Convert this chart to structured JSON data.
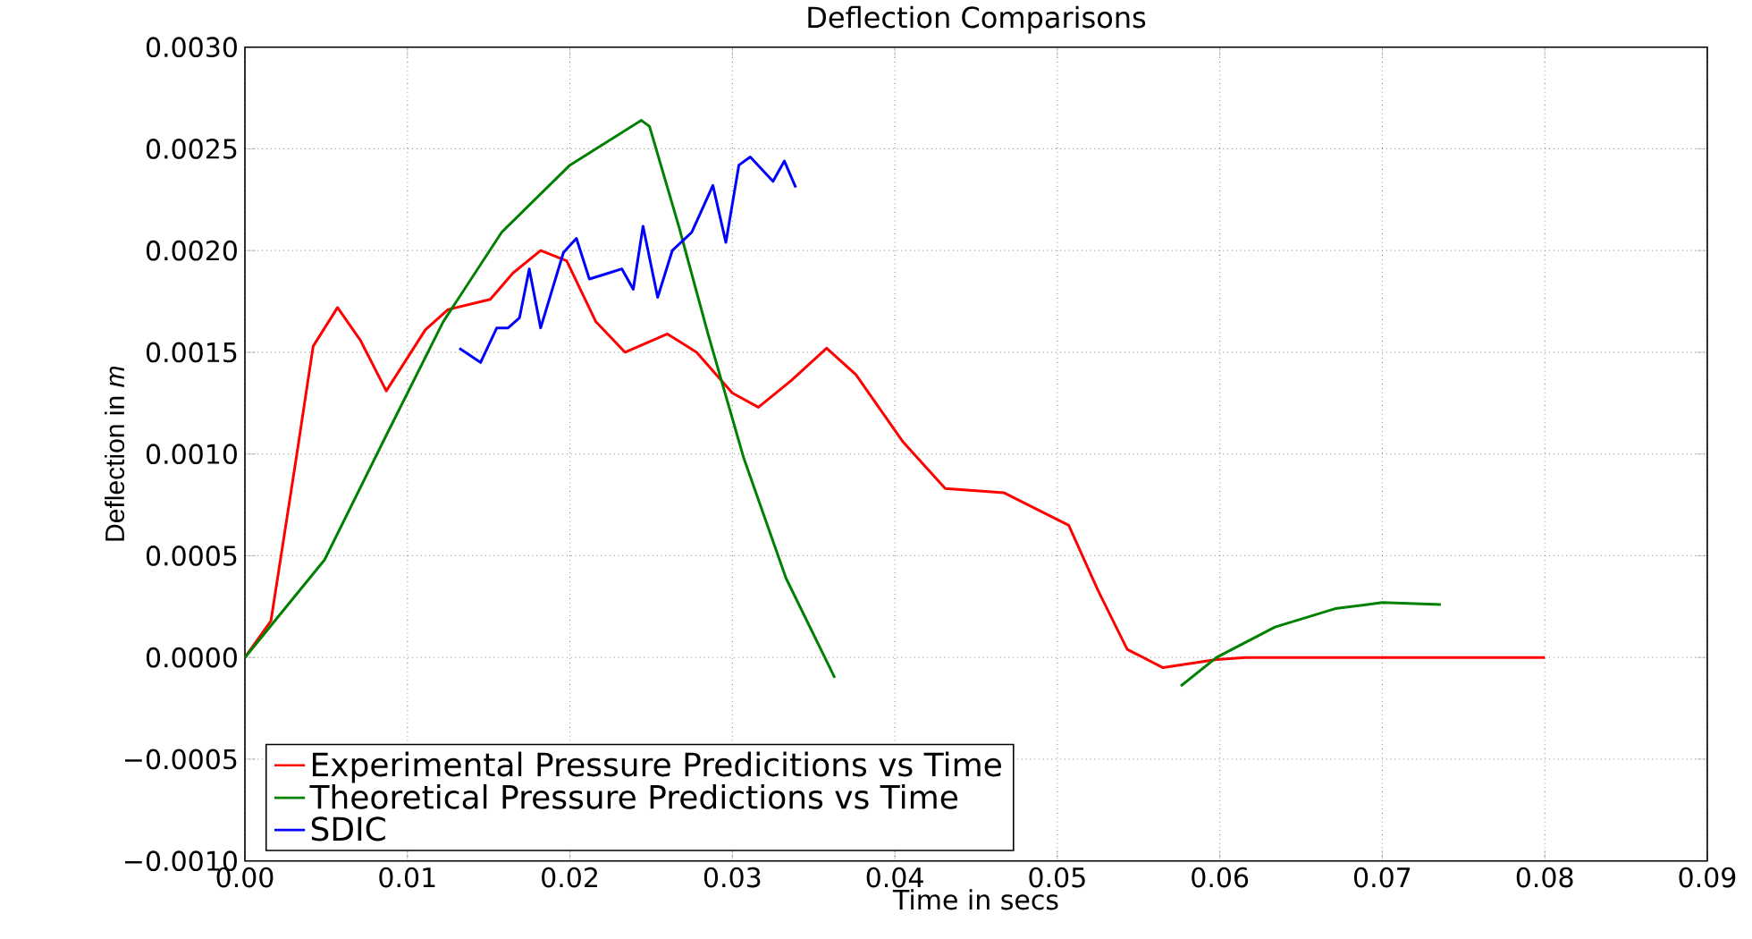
{
  "chart_data": {
    "type": "line",
    "title": "Deflection Comparisons",
    "xlabel": "Time in secs",
    "ylabel": "Deflection in *m*",
    "xlim": [
      0,
      0.09
    ],
    "ylim": [
      -0.001,
      0.003
    ],
    "xticks": [
      {
        "value": 0,
        "label": "0.00"
      },
      {
        "value": 0.01,
        "label": "0.01"
      },
      {
        "value": 0.02,
        "label": "0.02"
      },
      {
        "value": 0.03,
        "label": "0.03"
      },
      {
        "value": 0.04,
        "label": "0.04"
      },
      {
        "value": 0.05,
        "label": "0.05"
      },
      {
        "value": 0.06,
        "label": "0.06"
      },
      {
        "value": 0.07,
        "label": "0.07"
      },
      {
        "value": 0.08,
        "label": "0.08"
      },
      {
        "value": 0.09,
        "label": "0.09"
      }
    ],
    "yticks": [
      {
        "value": -0.001,
        "label": "−0.0010"
      },
      {
        "value": -0.0005,
        "label": "−0.0005"
      },
      {
        "value": 0,
        "label": "0.0000"
      },
      {
        "value": 0.0005,
        "label": "0.0005"
      },
      {
        "value": 0.001,
        "label": "0.0010"
      },
      {
        "value": 0.0015,
        "label": "0.0015"
      },
      {
        "value": 0.002,
        "label": "0.0020"
      },
      {
        "value": 0.0025,
        "label": "0.0025"
      },
      {
        "value": 0.003,
        "label": "0.0030"
      }
    ],
    "grid": true,
    "legend": "bottom left",
    "series": [
      {
        "name": "Experimental Pressure Predicitions vs Time",
        "color": "#ff0000",
        "x": [
          0,
          0.0016,
          0.0031,
          0.0042,
          0.0057,
          0.0071,
          0.0087,
          0.0111,
          0.0125,
          0.0151,
          0.0165,
          0.0182,
          0.0198,
          0.0216,
          0.0234,
          0.026,
          0.0278,
          0.03,
          0.0316,
          0.0336,
          0.0358,
          0.0376,
          0.0405,
          0.0431,
          0.0467,
          0.0507,
          0.0525,
          0.0543,
          0.0565,
          0.0598,
          0.0616,
          0.08
        ],
        "values": [
          0,
          0.00018,
          0.00095,
          0.00153,
          0.00172,
          0.00156,
          0.00131,
          0.00161,
          0.00171,
          0.00176,
          0.00189,
          0.002,
          0.00195,
          0.00165,
          0.0015,
          0.00159,
          0.0015,
          0.0013,
          0.00123,
          0.00136,
          0.00152,
          0.00139,
          0.00106,
          0.00083,
          0.00081,
          0.00065,
          0.00033,
          4e-05,
          -5e-05,
          -1e-05,
          0,
          0
        ]
      },
      {
        "name": "Theoretical Pressure Predictions vs Time",
        "color": "#008000",
        "x": [
          0,
          0.0049,
          0.0085,
          0.0122,
          0.0158,
          0.02,
          0.0244,
          0.0249,
          0.0267,
          0.0285,
          0.0307,
          0.0333,
          0.0363,
          0.047,
          0.0576,
          0.0598,
          0.0634,
          0.0671,
          0.07,
          0.0736
        ],
        "values": [
          0,
          0.00048,
          0.00106,
          0.00165,
          0.00209,
          0.00242,
          0.00264,
          0.00261,
          0.00212,
          0.00159,
          0.00098,
          0.00039,
          -0.0001,
          null,
          -0.00014,
          0,
          0.00015,
          0.00024,
          0.00027,
          0.00026
        ]
      },
      {
        "name": "SDIC",
        "color": "#0000ff",
        "x": [
          0.0132,
          0.0145,
          0.0155,
          0.0162,
          0.0169,
          0.0175,
          0.0182,
          0.0196,
          0.0204,
          0.0212,
          0.0224,
          0.0232,
          0.0239,
          0.0245,
          0.0254,
          0.0263,
          0.0275,
          0.0288,
          0.0296,
          0.0304,
          0.0311,
          0.0325,
          0.0332,
          0.0339
        ],
        "values": [
          0.00152,
          0.00145,
          0.00162,
          0.00162,
          0.00167,
          0.00191,
          0.00162,
          0.00199,
          0.00206,
          0.00186,
          0.00189,
          0.00191,
          0.00181,
          0.00212,
          0.00177,
          0.002,
          0.00209,
          0.00232,
          0.00204,
          0.00242,
          0.00246,
          0.00234,
          0.00244,
          0.00231
        ]
      }
    ]
  }
}
